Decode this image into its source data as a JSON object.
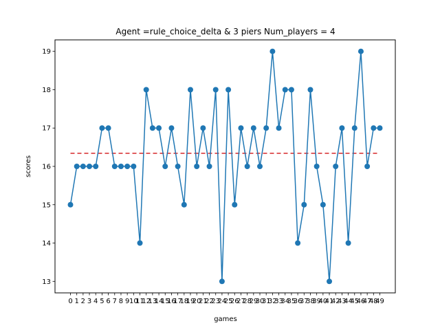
{
  "chart_data": {
    "type": "line",
    "title": "Agent =rule_choice_delta & 3 piers  Num_players = 4",
    "xlabel": "games",
    "ylabel": "scores",
    "x": [
      0,
      1,
      2,
      3,
      4,
      5,
      6,
      7,
      8,
      9,
      10,
      11,
      12,
      13,
      14,
      15,
      16,
      17,
      18,
      19,
      20,
      21,
      22,
      23,
      24,
      25,
      26,
      27,
      28,
      29,
      30,
      31,
      32,
      33,
      34,
      35,
      36,
      37,
      38,
      39,
      40,
      41,
      42,
      43,
      44,
      45,
      46,
      47,
      48,
      49
    ],
    "x_tick_labels": [
      "0",
      "1",
      "2",
      "3",
      "4",
      "5",
      "6",
      "7",
      "8",
      "9",
      "10",
      "11",
      "12",
      "13",
      "14",
      "15",
      "16",
      "17",
      "18",
      "19",
      "20",
      "21",
      "22",
      "23",
      "24",
      "25",
      "26",
      "27",
      "28",
      "29",
      "30",
      "31",
      "32",
      "33",
      "34",
      "35",
      "36",
      "37",
      "38",
      "39",
      "40",
      "41",
      "42",
      "43",
      "44",
      "45",
      "46",
      "47",
      "48",
      "49"
    ],
    "series": [
      {
        "values": [
          15,
          16,
          16,
          16,
          16,
          17,
          17,
          16,
          16,
          16,
          16,
          14,
          18,
          17,
          17,
          16,
          17,
          16,
          15,
          18,
          16,
          17,
          16,
          18,
          13,
          18,
          15,
          17,
          16,
          17,
          16,
          17,
          19,
          17,
          18,
          18,
          14,
          15,
          18,
          16,
          15,
          13,
          16,
          17,
          14,
          17,
          19,
          16,
          17,
          17
        ],
        "color": "#1f77b4",
        "marker": "circle"
      }
    ],
    "mean_line": {
      "value": 16.34,
      "color": "#d62728",
      "style": "dashed"
    },
    "ylim": [
      12.7,
      19.3
    ],
    "xlim": [
      -2.45,
      51.45
    ],
    "y_ticks": [
      "13",
      "14",
      "15",
      "16",
      "17",
      "18",
      "19"
    ],
    "grid": false,
    "legend": "none"
  }
}
